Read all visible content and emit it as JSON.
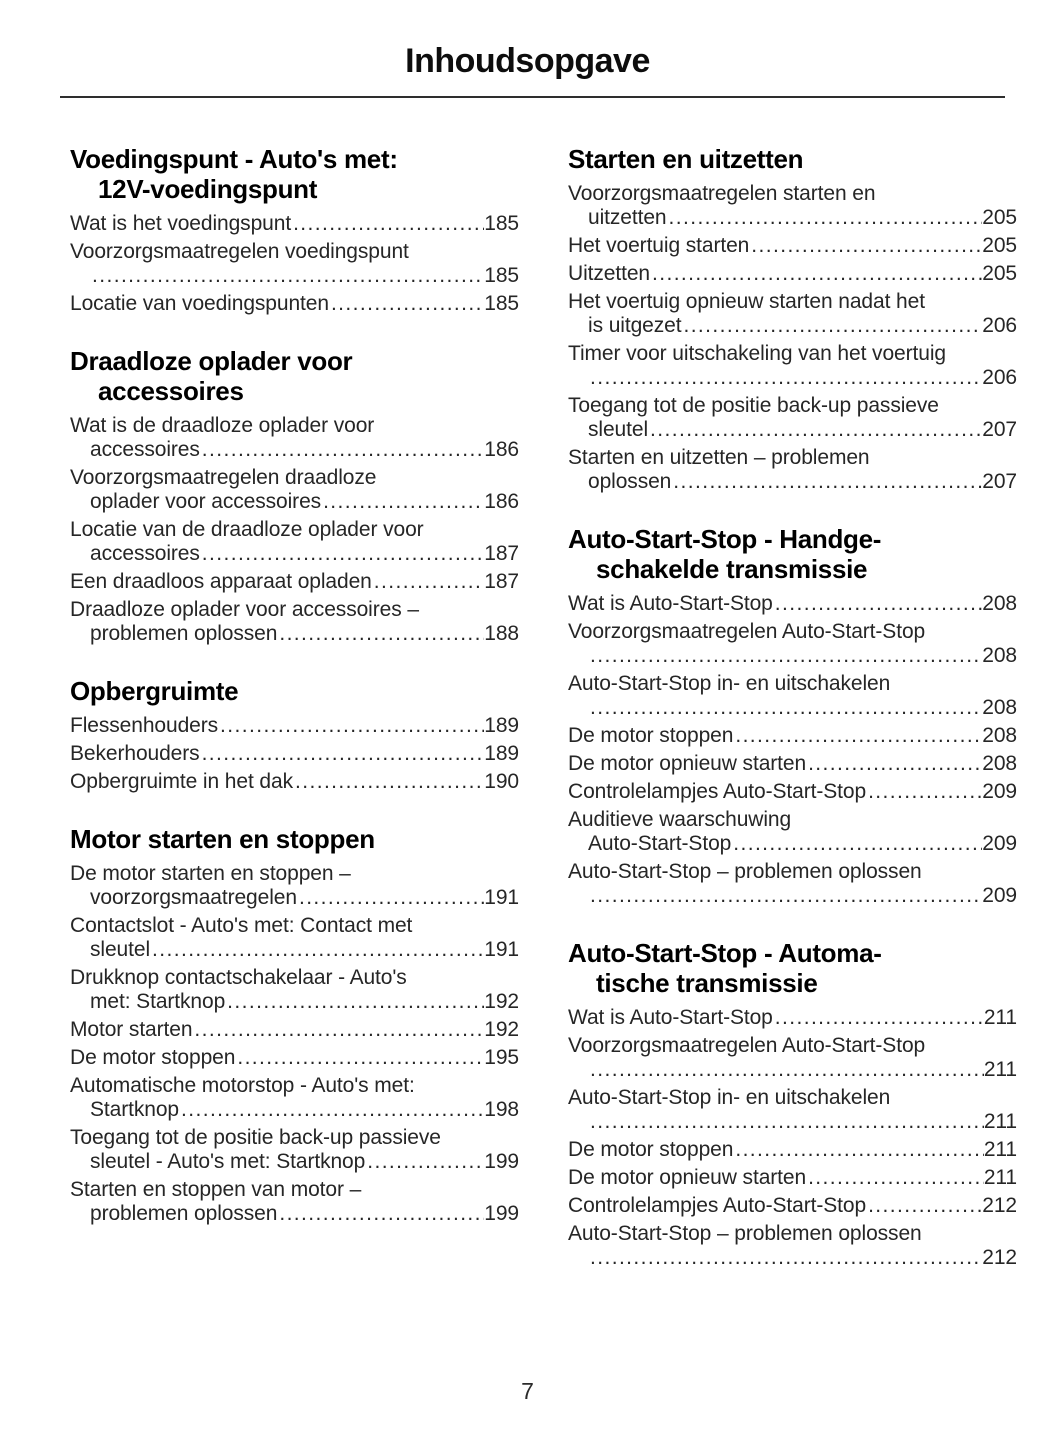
{
  "page": {
    "title": "Inhoudsopgave",
    "footer_page_number": "7"
  },
  "columns": [
    {
      "sections": [
        {
          "heading_lines": [
            "Voedingspunt - Auto's met:",
            "12V-voedingspunt"
          ],
          "entries": [
            {
              "lines": [
                "Wat is het voedingspunt"
              ],
              "page": "185"
            },
            {
              "lines": [
                "Voorzorgsmaatregelen voedingspunt",
                ""
              ],
              "page": "185"
            },
            {
              "lines": [
                "Locatie van voedingspunten"
              ],
              "page": "185"
            }
          ]
        },
        {
          "heading_lines": [
            "Draadloze oplader voor",
            "accessoires"
          ],
          "entries": [
            {
              "lines": [
                "Wat is de draadloze oplader voor",
                "accessoires"
              ],
              "page": "186"
            },
            {
              "lines": [
                "Voorzorgsmaatregelen draadloze",
                "oplader voor accessoires"
              ],
              "page": "186"
            },
            {
              "lines": [
                "Locatie van de draadloze oplader voor",
                "accessoires"
              ],
              "page": "187"
            },
            {
              "lines": [
                "Een draadloos apparaat opladen"
              ],
              "page": "187"
            },
            {
              "lines": [
                "Draadloze oplader voor accessoires –",
                "problemen oplossen"
              ],
              "page": "188"
            }
          ]
        },
        {
          "heading_lines": [
            "Opbergruimte"
          ],
          "entries": [
            {
              "lines": [
                "Flessenhouders"
              ],
              "page": "189"
            },
            {
              "lines": [
                "Bekerhouders"
              ],
              "page": "189"
            },
            {
              "lines": [
                "Opbergruimte in het dak"
              ],
              "page": "190"
            }
          ]
        },
        {
          "heading_lines": [
            "Motor starten en stoppen"
          ],
          "entries": [
            {
              "lines": [
                "De motor starten en stoppen –",
                "voorzorgsmaatregelen"
              ],
              "page": "191"
            },
            {
              "lines": [
                "Contactslot - Auto's met: Contact met",
                "sleutel"
              ],
              "page": "191"
            },
            {
              "lines": [
                "Drukknop contactschakelaar - Auto's",
                "met: Startknop"
              ],
              "page": "192"
            },
            {
              "lines": [
                "Motor starten"
              ],
              "page": "192"
            },
            {
              "lines": [
                "De motor stoppen"
              ],
              "page": "195"
            },
            {
              "lines": [
                "Automatische motorstop - Auto's met:",
                "Startknop"
              ],
              "page": "198"
            },
            {
              "lines": [
                "Toegang tot de positie back-up passieve",
                "sleutel - Auto's met: Startknop"
              ],
              "page": "199"
            },
            {
              "lines": [
                "Starten en stoppen van motor –",
                "problemen oplossen"
              ],
              "page": "199"
            }
          ]
        }
      ]
    },
    {
      "sections": [
        {
          "heading_lines": [
            "Starten en uitzetten"
          ],
          "entries": [
            {
              "lines": [
                "Voorzorgsmaatregelen starten en",
                "uitzetten"
              ],
              "page": "205"
            },
            {
              "lines": [
                "Het voertuig starten"
              ],
              "page": "205"
            },
            {
              "lines": [
                "Uitzetten"
              ],
              "page": "205"
            },
            {
              "lines": [
                "Het voertuig opnieuw starten nadat het",
                "is uitgezet"
              ],
              "page": "206"
            },
            {
              "lines": [
                "Timer voor uitschakeling van het voertuig",
                ""
              ],
              "page": "206"
            },
            {
              "lines": [
                "Toegang tot de positie back-up passieve",
                "sleutel"
              ],
              "page": "207"
            },
            {
              "lines": [
                "Starten en uitzetten – problemen",
                "oplossen"
              ],
              "page": "207"
            }
          ]
        },
        {
          "heading_lines": [
            "Auto-Start-Stop - Handge-",
            "schakelde transmissie"
          ],
          "entries": [
            {
              "lines": [
                "Wat is Auto-Start-Stop"
              ],
              "page": "208"
            },
            {
              "lines": [
                "Voorzorgsmaatregelen Auto-Start-Stop",
                ""
              ],
              "page": "208"
            },
            {
              "lines": [
                "Auto-Start-Stop in- en uitschakelen",
                ""
              ],
              "page": "208"
            },
            {
              "lines": [
                "De motor stoppen"
              ],
              "page": "208"
            },
            {
              "lines": [
                "De motor opnieuw starten"
              ],
              "page": "208"
            },
            {
              "lines": [
                "Controlelampjes Auto-Start-Stop"
              ],
              "page": "209"
            },
            {
              "lines": [
                "Auditieve waarschuwing",
                "Auto-Start-Stop"
              ],
              "page": "209"
            },
            {
              "lines": [
                "Auto-Start-Stop – problemen oplossen",
                ""
              ],
              "page": "209"
            }
          ]
        },
        {
          "heading_lines": [
            "Auto-Start-Stop - Automa-",
            "tische transmissie"
          ],
          "entries": [
            {
              "lines": [
                "Wat is Auto-Start-Stop"
              ],
              "page": "211"
            },
            {
              "lines": [
                "Voorzorgsmaatregelen Auto-Start-Stop",
                ""
              ],
              "page": "211"
            },
            {
              "lines": [
                "Auto-Start-Stop in- en uitschakelen",
                ""
              ],
              "page": "211"
            },
            {
              "lines": [
                "De motor stoppen"
              ],
              "page": "211"
            },
            {
              "lines": [
                "De motor opnieuw starten"
              ],
              "page": "211"
            },
            {
              "lines": [
                "Controlelampjes Auto-Start-Stop"
              ],
              "page": "212"
            },
            {
              "lines": [
                "Auto-Start-Stop – problemen oplossen",
                ""
              ],
              "page": "212"
            }
          ]
        }
      ]
    }
  ]
}
